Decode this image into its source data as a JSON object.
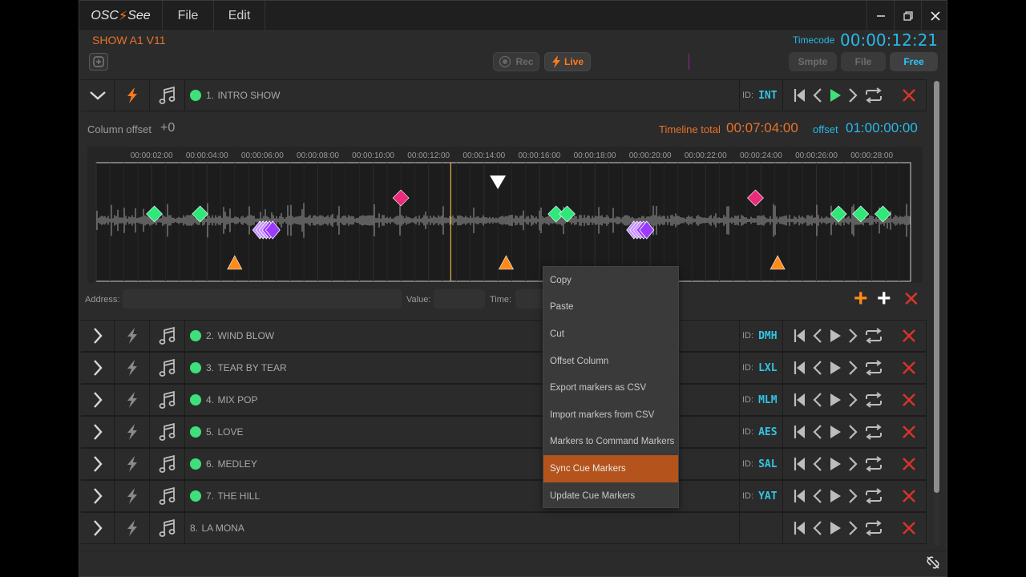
{
  "app": {
    "logo_left": "OSC",
    "logo_bolt": "⚡",
    "logo_right": "See",
    "menu": [
      "File",
      "Edit"
    ],
    "window_buttons": [
      "minimize-icon",
      "restore-icon",
      "close-icon"
    ]
  },
  "header": {
    "show_title": "SHOW A1 V11",
    "timecode_label": "Timecode",
    "timecode_value": "00:00:12:21",
    "rec_label": "Rec",
    "live_label": "Live",
    "modes": [
      "Smpte",
      "File",
      "Free"
    ],
    "active_mode": "Free"
  },
  "expanded": {
    "column_offset_label": "Column offset",
    "column_offset_value": "+0",
    "timeline_total_label": "Timeline total",
    "timeline_total_value": "00:07:04:00",
    "offset_label": "offset",
    "offset_value": "01:00:00:00"
  },
  "timeline": {
    "ticks": [
      "00:00:02:00",
      "00:00:04:00",
      "00:00:06:00",
      "00:00:08:00",
      "00:00:10:00",
      "00:00:12:00",
      "00:00:14:00",
      "00:00:16:00",
      "00:00:18:00",
      "00:00:20:00",
      "00:00:22:00",
      "00:00:24:00",
      "00:00:26:00",
      "00:00:28:00"
    ],
    "tick_seconds": [
      2,
      4,
      6,
      8,
      10,
      12,
      14,
      16,
      18,
      20,
      22,
      24,
      26,
      28
    ],
    "range_seconds": [
      0,
      29.4
    ],
    "playhead_seconds": 12.8,
    "green_markers_seconds": [
      2.1,
      3.75,
      16.6,
      17.0,
      26.8,
      27.6,
      28.4
    ],
    "pink_markers_seconds": [
      11.0,
      23.8
    ],
    "orange_markers_seconds": [
      5.0,
      14.8,
      24.6
    ],
    "white_marker_seconds": 14.5,
    "purple_clusters_seconds": [
      6.2,
      19.7
    ],
    "colors": {
      "green": "#2ee87a",
      "pink": "#ec2a7a",
      "orange": "#ff8a1a",
      "purple": "#9b3bff",
      "playhead": "#e8b84a"
    }
  },
  "command_editor": {
    "address_label": "Address:",
    "value_label": "Value:",
    "time_label": "Time:"
  },
  "context_menu": {
    "items": [
      "Copy",
      "Paste",
      "Cut",
      "Offset Column",
      "Export markers as CSV",
      "Import markers from CSV",
      "Markers to Command Markers",
      "Sync Cue Markers",
      "Update Cue Markers"
    ],
    "highlighted": "Sync Cue Markers"
  },
  "cues": [
    {
      "number": "1.",
      "name": "INTRO SHOW",
      "id_label": "ID:",
      "id": "INT",
      "expanded": true,
      "active": true,
      "playing": true
    },
    {
      "number": "2.",
      "name": "WIND BLOW",
      "id_label": "ID:",
      "id": "DMH",
      "expanded": false,
      "active": true,
      "playing": false
    },
    {
      "number": "3.",
      "name": "TEAR BY TEAR",
      "id_label": "ID:",
      "id": "LXL",
      "expanded": false,
      "active": true,
      "playing": false
    },
    {
      "number": "4.",
      "name": "MIX POP",
      "id_label": "ID:",
      "id": "MLM",
      "expanded": false,
      "active": true,
      "playing": false
    },
    {
      "number": "5.",
      "name": "LOVE",
      "id_label": "ID:",
      "id": "AES",
      "expanded": false,
      "active": true,
      "playing": false
    },
    {
      "number": "6.",
      "name": "MEDLEY",
      "id_label": "ID:",
      "id": "SAL",
      "expanded": false,
      "active": true,
      "playing": false
    },
    {
      "number": "7.",
      "name": "THE HILL",
      "id_label": "ID:",
      "id": "YAT",
      "expanded": false,
      "active": true,
      "playing": false
    },
    {
      "number": "8.",
      "name": "LA MONA",
      "id_label": "",
      "id": "",
      "expanded": false,
      "active": false,
      "playing": false
    }
  ]
}
